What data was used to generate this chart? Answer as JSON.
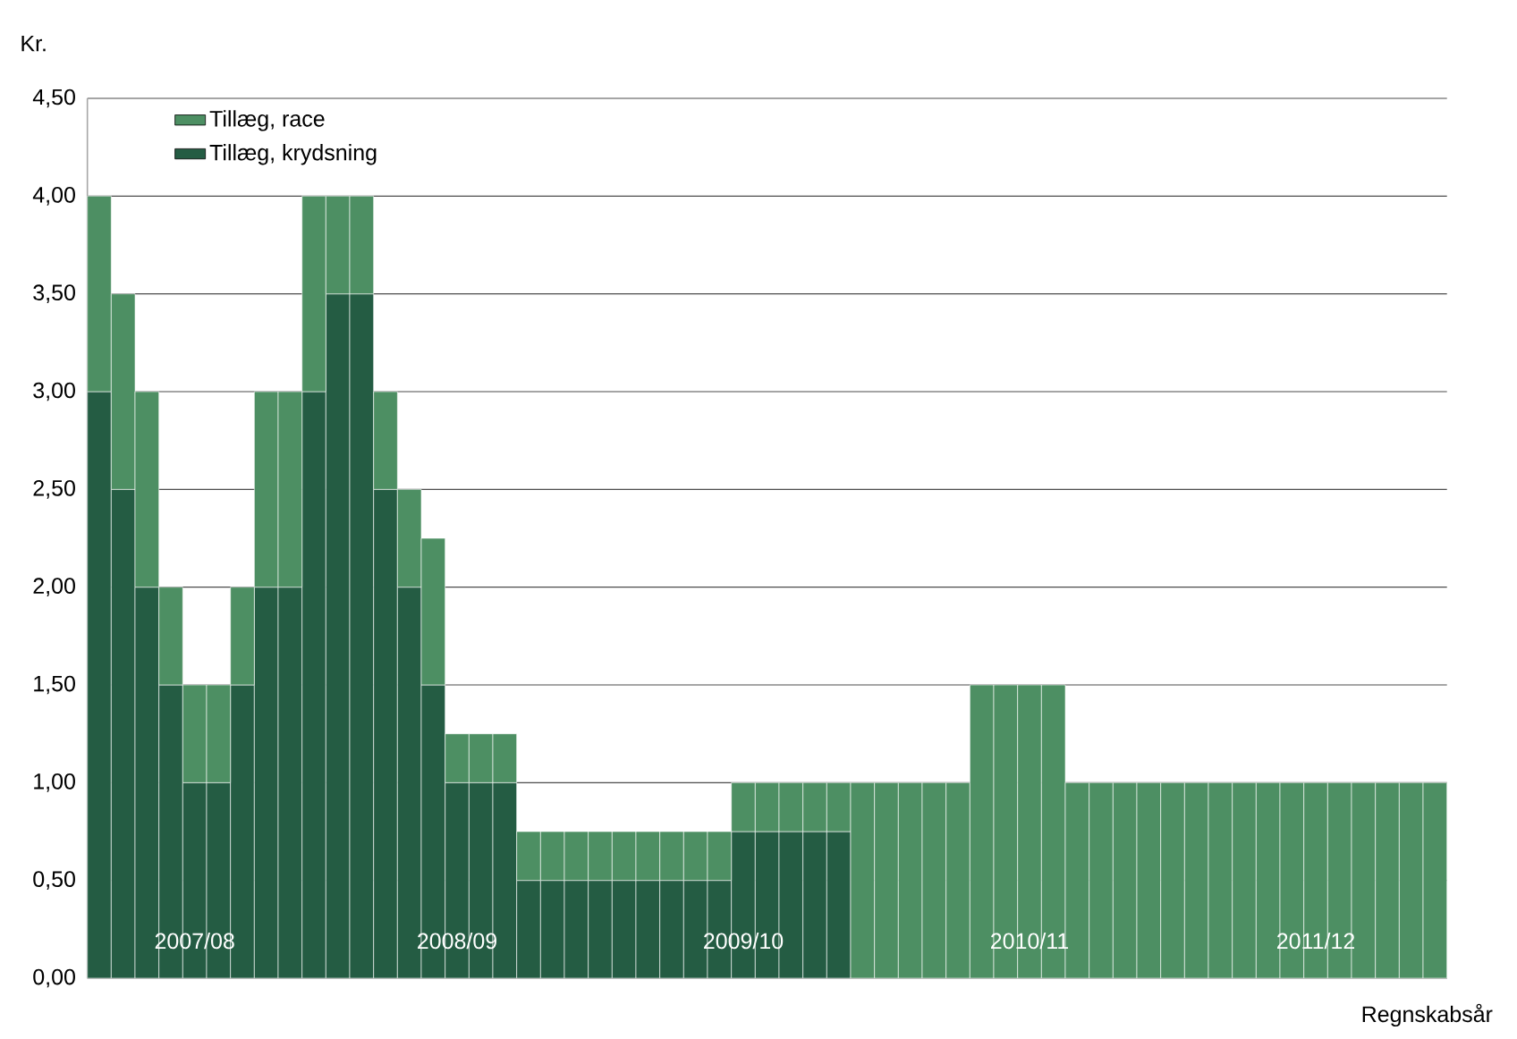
{
  "chart_data": {
    "type": "bar",
    "stacked": true,
    "ylabel": "Kr.",
    "xlabel": "Regnskabsår",
    "categories": [
      null,
      null,
      null,
      null,
      "2007/08",
      null,
      null,
      null,
      null,
      null,
      null,
      null,
      null,
      null,
      null,
      "2008/09",
      null,
      null,
      null,
      null,
      null,
      null,
      null,
      null,
      null,
      null,
      null,
      "2009/10",
      null,
      null,
      null,
      null,
      null,
      null,
      null,
      null,
      null,
      null,
      null,
      "2010/11",
      null,
      null,
      null,
      null,
      null,
      null,
      null,
      null,
      null,
      null,
      null,
      "2011/12",
      null,
      null,
      null,
      null,
      null
    ],
    "series": [
      {
        "name": "Tillæg, krydsning",
        "color": "#245c43",
        "values": [
          3.0,
          2.5,
          2.0,
          1.5,
          1.0,
          1.0,
          1.5,
          2.0,
          2.0,
          3.0,
          3.5,
          3.5,
          2.5,
          2.0,
          1.5,
          1.0,
          1.0,
          1.0,
          0.5,
          0.5,
          0.5,
          0.5,
          0.5,
          0.5,
          0.5,
          0.5,
          0.5,
          0.75,
          0.75,
          0.75,
          0.75,
          0.75,
          0,
          0,
          0,
          0,
          0,
          0,
          0,
          0,
          0,
          0,
          0,
          0,
          0,
          0,
          0,
          0,
          0,
          0,
          0,
          0,
          0,
          0,
          0,
          0,
          0
        ]
      },
      {
        "name": "Tillæg, race",
        "color": "#4d8f63",
        "values": [
          1.0,
          1.0,
          1.0,
          0.5,
          0.5,
          0.5,
          0.5,
          1.0,
          1.0,
          1.0,
          0.5,
          0.5,
          0.5,
          0.5,
          0.75,
          0.25,
          0.25,
          0.25,
          0.25,
          0.25,
          0.25,
          0.25,
          0.25,
          0.25,
          0.25,
          0.25,
          0.25,
          0.25,
          0.25,
          0.25,
          0.25,
          0.25,
          1.0,
          1.0,
          1.0,
          1.0,
          1.0,
          1.5,
          1.5,
          1.5,
          1.5,
          1.0,
          1.0,
          1.0,
          1.0,
          1.0,
          1.0,
          1.0,
          1.0,
          1.0,
          1.0,
          1.0,
          1.0,
          1.0,
          1.0,
          1.0,
          1.0
        ]
      }
    ],
    "ylim": [
      0,
      4.5
    ],
    "yticks": [
      {
        "value": 0,
        "label": "0,00"
      },
      {
        "value": 0.5,
        "label": "0,50"
      },
      {
        "value": 1.0,
        "label": "1,00"
      },
      {
        "value": 1.5,
        "label": "1,50"
      },
      {
        "value": 2.0,
        "label": "2,00"
      },
      {
        "value": 2.5,
        "label": "2,50"
      },
      {
        "value": 3.0,
        "label": "3,00"
      },
      {
        "value": 3.5,
        "label": "3,50"
      },
      {
        "value": 4.0,
        "label": "4,00"
      },
      {
        "value": 4.5,
        "label": "4,50"
      }
    ],
    "grid": "y",
    "legend": "top left"
  }
}
